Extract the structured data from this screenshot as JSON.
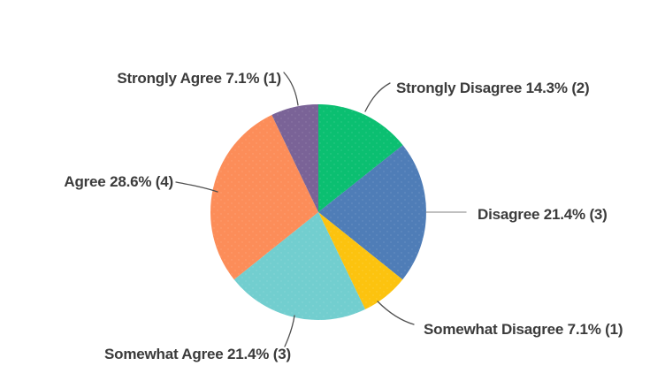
{
  "page": {
    "background_color": "#ffffff",
    "label_text_color": "#3b3b3b",
    "leader_line_color": "#4f4f4f"
  },
  "chart_data": {
    "type": "pie",
    "start_position": "12-o-clock",
    "direction": "clockwise",
    "legend_position": "outside-callout-labels",
    "slices": [
      {
        "label": "Strongly Disagree",
        "percent": 14.3,
        "count": 2,
        "color": "#0bbf71"
      },
      {
        "label": "Disagree",
        "percent": 21.4,
        "count": 3,
        "color": "#4f7db7"
      },
      {
        "label": "Somewhat Disagree",
        "percent": 7.1,
        "count": 1,
        "color": "#fcc30f"
      },
      {
        "label": "Somewhat Agree",
        "percent": 21.4,
        "count": 3,
        "color": "#72cecf"
      },
      {
        "label": "Agree",
        "percent": 28.6,
        "count": 4,
        "color": "#fc8d59"
      },
      {
        "label": "Strongly Agree",
        "percent": 7.1,
        "count": 1,
        "color": "#7a6397"
      }
    ],
    "callout_labels": {
      "strongly_agree": "Strongly Agree 7.1% (1)",
      "strongly_disagree": "Strongly Disagree 14.3% (2)",
      "disagree": "Disagree 21.4% (3)",
      "somewhat_disagree": "Somewhat Disagree 7.1% (1)",
      "somewhat_agree": "Somewhat Agree 21.4% (3)",
      "agree": "Agree 28.6% (4)"
    }
  }
}
